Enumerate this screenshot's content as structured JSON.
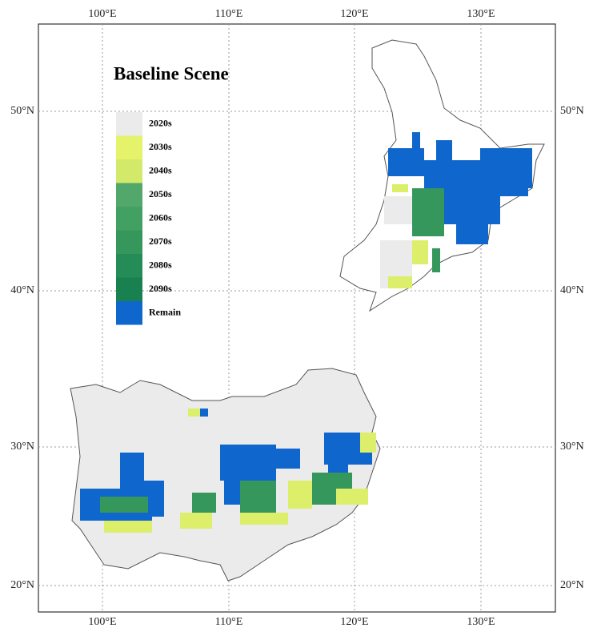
{
  "title": "Baseline Scene",
  "legend": [
    {
      "label": "2020s",
      "color": "#ebebeb"
    },
    {
      "label": "2030s",
      "color": "#e4f36a"
    },
    {
      "label": "2040s",
      "color": "#d2e96a"
    },
    {
      "label": "2050s",
      "color": "#52a86a"
    },
    {
      "label": "2060s",
      "color": "#42a063"
    },
    {
      "label": "2070s",
      "color": "#36975d"
    },
    {
      "label": "2080s",
      "color": "#268c57"
    },
    {
      "label": "2090s",
      "color": "#19804f"
    },
    {
      "label": "Remain",
      "color": "#0f66cc"
    }
  ],
  "x_axis": {
    "ticks": [
      "100°E",
      "110°E",
      "120°E",
      "130°E"
    ]
  },
  "y_axis": {
    "ticks": [
      "50°N",
      "40°N",
      "30°N",
      "20°N"
    ]
  }
}
